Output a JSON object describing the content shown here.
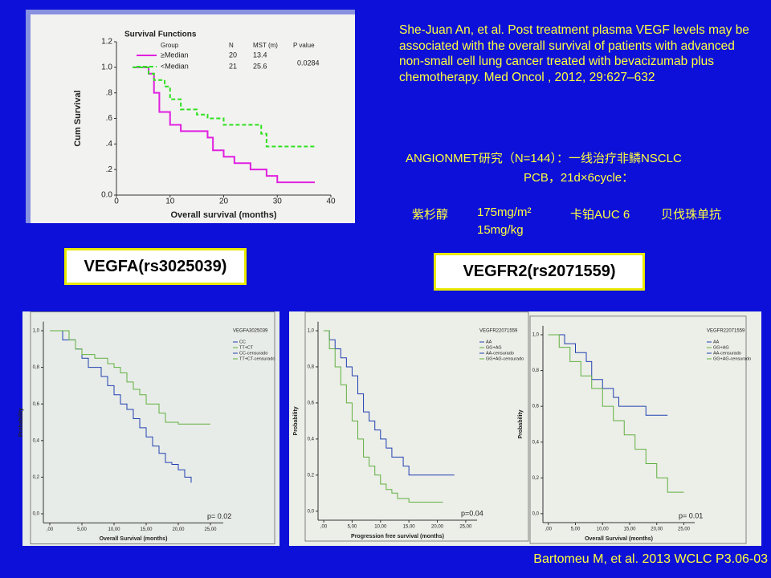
{
  "reference": "She-Juan An, et al. Post treatment plasma VEGF levels may be associated with the overall survival of patients with advanced non-small cell lung cancer treated with bevacizumab plus chemotherapy. Med Oncol , 2012, 29:627–632",
  "study": {
    "line1": "ANGIONMET研究（N=144）：一线治疗非鳞NSCLC",
    "line2": "PCB，21d×6cycle：",
    "row1": [
      "紫杉醇",
      "175mg/m²",
      "卡铂AUC 6",
      "贝伐珠单抗"
    ],
    "row2": "15mg/kg"
  },
  "labels": {
    "vegfa": "VEGFA(rs3025039)",
    "vegfr2": "VEGFR2(rs2071559)"
  },
  "footer": "Bartomeu M, et al. 2013 WCLC P3.06-03",
  "chart_data": [
    {
      "type": "line",
      "step": true,
      "title": "Survival Functions",
      "x_label": "Overall survival (months)",
      "y_label": "Cum Survival",
      "table": {
        "header": [
          "Group",
          "N",
          "MST (m)",
          "P value"
        ],
        "rows": [
          [
            "≥Median",
            "20",
            "13.4"
          ],
          [
            "<Median",
            "21",
            "25.6"
          ]
        ],
        "p_value": "0.0284"
      },
      "xlim": [
        0,
        40
      ],
      "xticks": [
        0,
        10,
        20,
        30,
        40
      ],
      "ylim": [
        0,
        1.2
      ],
      "yticks": [
        {
          "value": 0,
          "label": "0.0"
        },
        {
          "value": 0.2,
          "label": ".2"
        },
        {
          "value": 0.4,
          "label": ".4"
        },
        {
          "value": 0.6,
          "label": ".6"
        },
        {
          "value": 0.8,
          "label": ".8"
        },
        {
          "value": 1,
          "label": "1.0"
        },
        {
          "value": 1.2,
          "label": "1.2"
        }
      ],
      "series": [
        {
          "name": "≥Median",
          "color": "#e020e0",
          "x": [
            3,
            6,
            7,
            8,
            10,
            12,
            17,
            18,
            20,
            22,
            25,
            28,
            30,
            37
          ],
          "values": [
            1,
            0.95,
            0.8,
            0.65,
            0.55,
            0.5,
            0.45,
            0.35,
            0.3,
            0.25,
            0.2,
            0.15,
            0.1,
            0.1
          ]
        },
        {
          "name": "<Median",
          "color": "#30e020",
          "x": [
            3,
            6,
            7,
            9,
            10,
            12,
            15,
            17,
            20,
            27,
            28,
            30,
            37
          ],
          "values": [
            1,
            0.95,
            0.9,
            0.85,
            0.75,
            0.67,
            0.63,
            0.6,
            0.55,
            0.48,
            0.38,
            0.38,
            0.38
          ]
        }
      ]
    },
    {
      "type": "line",
      "step": true,
      "legend_title": "VEGFA3025039",
      "x_label": "Overall Survival (months)",
      "y_label": "Probability",
      "p_value": "p= 0.02",
      "legend_extra": [
        "CC-censurado",
        "TT+CT-censurado"
      ],
      "xlim": [
        -1,
        27
      ],
      "xticks": [
        {
          "value": 0,
          "label": ",00"
        },
        {
          "value": 5,
          "label": "5,00"
        },
        {
          "value": 10,
          "label": "10,00"
        },
        {
          "value": 15,
          "label": "15,00"
        },
        {
          "value": 20,
          "label": "20,00"
        },
        {
          "value": 25,
          "label": "25,00"
        }
      ],
      "ylim": [
        -0.05,
        1.05
      ],
      "yticks": [
        {
          "value": 0,
          "label": "0,0"
        },
        {
          "value": 0.2,
          "label": "0,2"
        },
        {
          "value": 0.4,
          "label": "0,4"
        },
        {
          "value": 0.6,
          "label": "0,6"
        },
        {
          "value": 0.8,
          "label": "0,8"
        },
        {
          "value": 1,
          "label": "1,0"
        }
      ],
      "series": [
        {
          "name": "CC",
          "color": "#2040b0",
          "x": [
            0,
            2,
            4,
            5,
            6,
            8,
            9,
            10,
            11,
            12,
            13,
            14,
            15,
            16,
            17,
            18,
            19,
            20,
            21,
            22
          ],
          "values": [
            1,
            0.95,
            0.9,
            0.85,
            0.8,
            0.75,
            0.7,
            0.65,
            0.6,
            0.57,
            0.52,
            0.47,
            0.42,
            0.37,
            0.33,
            0.28,
            0.27,
            0.24,
            0.2,
            0.17
          ]
        },
        {
          "name": "TT+CT",
          "color": "#60b040",
          "x": [
            0,
            3,
            4,
            5,
            7,
            9,
            10,
            11,
            12,
            13,
            14,
            15,
            17,
            18,
            20,
            22,
            25
          ],
          "values": [
            1,
            0.95,
            0.9,
            0.87,
            0.85,
            0.82,
            0.8,
            0.77,
            0.72,
            0.68,
            0.65,
            0.6,
            0.55,
            0.5,
            0.49,
            0.49,
            0.49
          ]
        }
      ]
    },
    {
      "type": "line",
      "step": true,
      "legend_title": "VEGFR22071559",
      "x_label": "Progression free survival (months)",
      "y_label": "Probability",
      "p_value": "p=0.04",
      "legend_extra": [
        "AA-censurado",
        "GG+AG-censurado"
      ],
      "xlim": [
        -1,
        27
      ],
      "xticks": [
        {
          "value": 0,
          "label": ",00"
        },
        {
          "value": 5,
          "label": "5,00"
        },
        {
          "value": 10,
          "label": "10,00"
        },
        {
          "value": 15,
          "label": "15,00"
        },
        {
          "value": 20,
          "label": "20,00"
        },
        {
          "value": 25,
          "label": "25,00"
        }
      ],
      "ylim": [
        -0.05,
        1.05
      ],
      "yticks": [
        {
          "value": 0,
          "label": "0,0"
        },
        {
          "value": 0.2,
          "label": "0,2"
        },
        {
          "value": 0.4,
          "label": "0,4"
        },
        {
          "value": 0.6,
          "label": "0,6"
        },
        {
          "value": 0.8,
          "label": "0,8"
        },
        {
          "value": 1,
          "label": "1,0"
        }
      ],
      "series": [
        {
          "name": "AA",
          "color": "#2040b0",
          "x": [
            0,
            1,
            2,
            3,
            4,
            5,
            6,
            7,
            8,
            9,
            10,
            11,
            12,
            14,
            15,
            23
          ],
          "values": [
            1,
            0.95,
            0.9,
            0.85,
            0.8,
            0.75,
            0.65,
            0.55,
            0.5,
            0.45,
            0.4,
            0.35,
            0.3,
            0.25,
            0.2,
            0.2
          ]
        },
        {
          "name": "GG+AG",
          "color": "#60b040",
          "x": [
            0,
            1,
            2,
            3,
            4,
            5,
            6,
            7,
            8,
            9,
            10,
            11,
            12,
            13,
            15,
            21
          ],
          "values": [
            1,
            0.9,
            0.8,
            0.7,
            0.6,
            0.5,
            0.4,
            0.3,
            0.25,
            0.2,
            0.15,
            0.12,
            0.1,
            0.07,
            0.05,
            0.05
          ]
        }
      ]
    },
    {
      "type": "line",
      "step": true,
      "legend_title": "VEGFR22071559",
      "x_label": "Overall Survival (months)",
      "y_label": "Probability",
      "p_value": "p= 0.01",
      "legend_extra": [
        "AA-censurado",
        "GG+AG-censurado"
      ],
      "xlim": [
        -1,
        27
      ],
      "xticks": [
        {
          "value": 0,
          "label": ",00"
        },
        {
          "value": 5,
          "label": "5,00"
        },
        {
          "value": 10,
          "label": "10,00"
        },
        {
          "value": 15,
          "label": "15,00"
        },
        {
          "value": 20,
          "label": "20,00"
        },
        {
          "value": 25,
          "label": "25,00"
        }
      ],
      "ylim": [
        -0.05,
        1.05
      ],
      "yticks": [
        {
          "value": 0,
          "label": "0,0"
        },
        {
          "value": 0.2,
          "label": "0,2"
        },
        {
          "value": 0.4,
          "label": "0,4"
        },
        {
          "value": 0.6,
          "label": "0,6"
        },
        {
          "value": 0.8,
          "label": "0,8"
        },
        {
          "value": 1,
          "label": "1,0"
        }
      ],
      "series": [
        {
          "name": "AA",
          "color": "#2040b0",
          "x": [
            0,
            3,
            5,
            7,
            8,
            10,
            12,
            13,
            18,
            19,
            22
          ],
          "values": [
            1,
            0.95,
            0.9,
            0.85,
            0.75,
            0.7,
            0.65,
            0.6,
            0.55,
            0.55,
            0.55
          ]
        },
        {
          "name": "GG+AG",
          "color": "#60b040",
          "x": [
            0,
            2,
            4,
            6,
            8,
            10,
            12,
            14,
            16,
            18,
            20,
            22,
            25
          ],
          "values": [
            1,
            0.93,
            0.85,
            0.77,
            0.7,
            0.6,
            0.52,
            0.44,
            0.36,
            0.28,
            0.2,
            0.12,
            0.12
          ]
        }
      ]
    }
  ]
}
